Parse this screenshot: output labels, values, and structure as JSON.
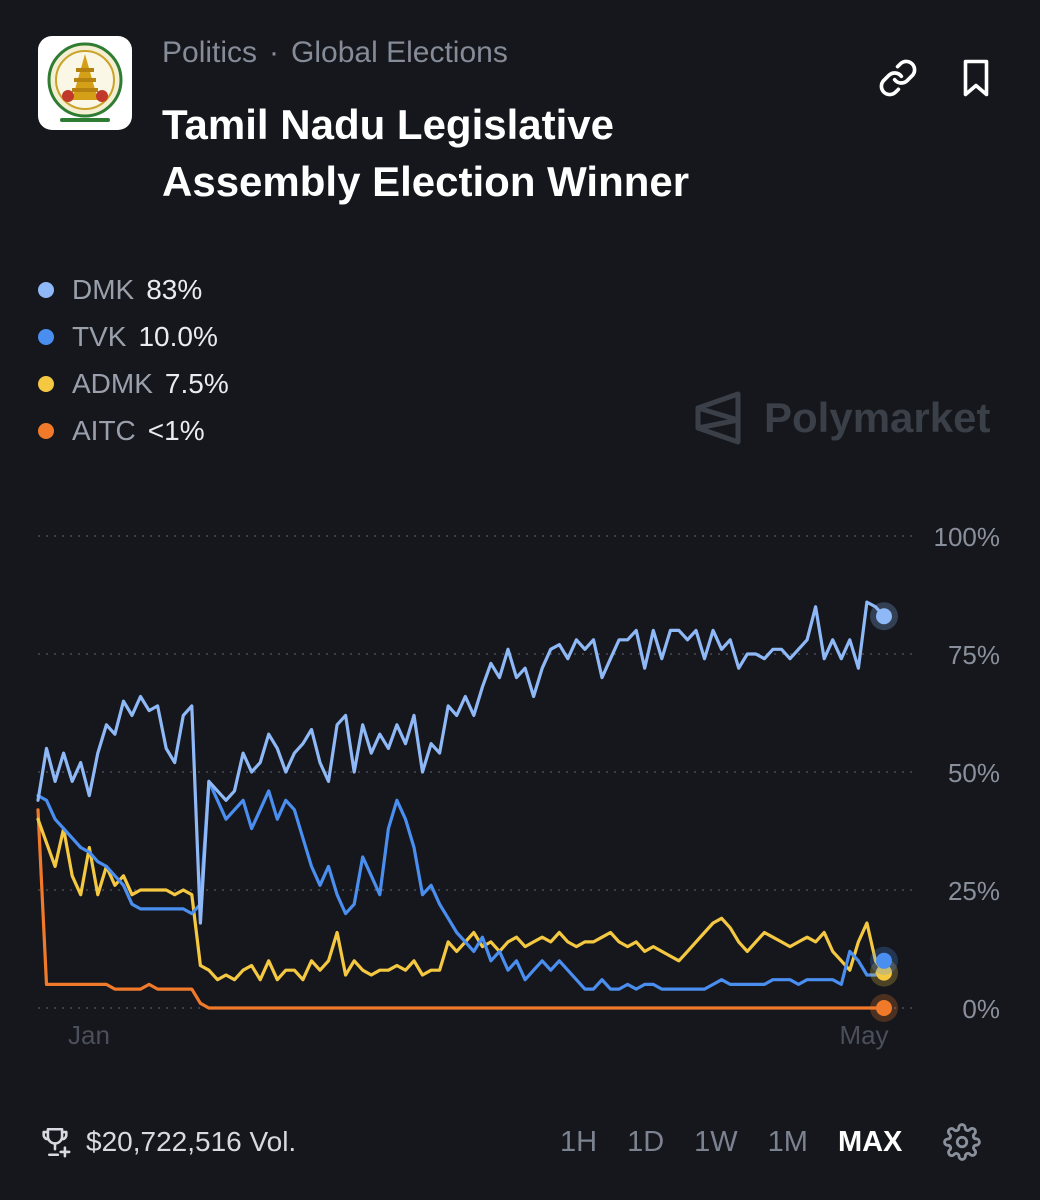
{
  "breadcrumb": {
    "category": "Politics",
    "subcategory": "Global Elections",
    "separator": "·"
  },
  "market": {
    "title": "Tamil Nadu Legislative Assembly Election Winner"
  },
  "icons": {
    "logo": "tamil-nadu-emblem",
    "link": "link-icon",
    "bookmark": "bookmark-icon",
    "trophy": "trophy-icon",
    "settings": "gear-icon",
    "watermark": "polymarket-logo"
  },
  "legend": [
    {
      "name": "DMK",
      "value": "83%",
      "color": "#8fb8f7"
    },
    {
      "name": "TVK",
      "value": "10.0%",
      "color": "#4a8ef0"
    },
    {
      "name": "ADMK",
      "value": "7.5%",
      "color": "#f5c842"
    },
    {
      "name": "AITC",
      "value": "<1%",
      "color": "#f07a2a"
    }
  ],
  "watermark": {
    "text": "Polymarket"
  },
  "chart_data": {
    "type": "line",
    "x_labels": [
      "Jan",
      "May"
    ],
    "y_tick_labels": [
      "100%",
      "75%",
      "50%",
      "25%",
      "0%"
    ],
    "ylim": [
      0,
      100
    ],
    "grid": "horizontal dotted",
    "series": [
      {
        "name": "DMK",
        "color": "#8fb8f7",
        "values": [
          44,
          55,
          48,
          54,
          48,
          52,
          45,
          54,
          60,
          58,
          65,
          62,
          66,
          63,
          64,
          55,
          52,
          62,
          64,
          18,
          48,
          46,
          44,
          46,
          54,
          50,
          52,
          58,
          55,
          50,
          54,
          56,
          59,
          52,
          48,
          60,
          62,
          50,
          60,
          54,
          58,
          55,
          60,
          56,
          62,
          50,
          56,
          54,
          64,
          62,
          66,
          62,
          68,
          73,
          70,
          76,
          70,
          72,
          66,
          72,
          76,
          77,
          74,
          78,
          76,
          78,
          70,
          74,
          78,
          78,
          80,
          72,
          80,
          74,
          80,
          80,
          78,
          80,
          74,
          80,
          76,
          78,
          72,
          75,
          75,
          74,
          76,
          76,
          74,
          76,
          78,
          85,
          74,
          78,
          74,
          78,
          72,
          86,
          85,
          83
        ]
      },
      {
        "name": "TVK",
        "color": "#4a8ef0",
        "values": [
          45,
          44,
          40,
          38,
          36,
          34,
          33,
          31,
          30,
          28,
          26,
          22,
          21,
          21,
          21,
          21,
          21,
          21,
          20,
          22,
          48,
          44,
          40,
          42,
          44,
          38,
          42,
          46,
          40,
          44,
          42,
          36,
          30,
          26,
          30,
          24,
          20,
          22,
          32,
          28,
          24,
          38,
          44,
          40,
          34,
          24,
          26,
          22,
          19,
          16,
          14,
          12,
          15,
          10,
          12,
          8,
          10,
          6,
          8,
          10,
          8,
          10,
          8,
          6,
          4,
          4,
          6,
          4,
          4,
          5,
          4,
          5,
          5,
          4,
          4,
          4,
          4,
          4,
          4,
          5,
          6,
          5,
          5,
          5,
          5,
          5,
          6,
          6,
          6,
          5,
          6,
          6,
          6,
          6,
          5,
          12,
          10,
          7,
          7,
          10
        ]
      },
      {
        "name": "ADMK",
        "color": "#f5c842",
        "values": [
          40,
          35,
          30,
          38,
          28,
          24,
          34,
          24,
          30,
          26,
          28,
          24,
          25,
          25,
          25,
          25,
          24,
          25,
          24,
          9,
          8,
          6,
          7,
          6,
          8,
          9,
          6,
          10,
          6,
          8,
          8,
          6,
          10,
          8,
          10,
          16,
          7,
          10,
          8,
          7,
          8,
          8,
          9,
          8,
          10,
          7,
          8,
          8,
          14,
          12,
          14,
          16,
          13,
          14,
          12,
          14,
          15,
          13,
          14,
          15,
          14,
          16,
          14,
          13,
          14,
          14,
          15,
          16,
          14,
          13,
          14,
          12,
          13,
          12,
          11,
          10,
          12,
          14,
          16,
          18,
          19,
          17,
          14,
          12,
          14,
          16,
          15,
          14,
          13,
          14,
          15,
          14,
          16,
          12,
          10,
          8,
          14,
          18,
          10,
          7.5
        ]
      },
      {
        "name": "AITC",
        "color": "#f07a2a",
        "values": [
          42,
          5,
          5,
          5,
          5,
          5,
          5,
          5,
          5,
          4,
          4,
          4,
          4,
          5,
          4,
          4,
          4,
          4,
          4,
          1,
          0,
          0,
          0,
          0,
          0,
          0,
          0,
          0,
          0,
          0,
          0,
          0,
          0,
          0,
          0,
          0,
          0,
          0,
          0,
          0,
          0,
          0,
          0,
          0,
          0,
          0,
          0,
          0,
          0,
          0,
          0,
          0,
          0,
          0,
          0,
          0,
          0,
          0,
          0,
          0,
          0,
          0,
          0,
          0,
          0,
          0,
          0,
          0,
          0,
          0,
          0,
          0,
          0,
          0,
          0,
          0,
          0,
          0,
          0,
          0,
          0,
          0,
          0,
          0,
          0,
          0,
          0,
          0,
          0,
          0,
          0,
          0,
          0,
          0,
          0,
          0,
          0,
          0,
          0,
          0
        ]
      }
    ]
  },
  "footer": {
    "volume": "$20,722,516 Vol."
  },
  "time_ranges": [
    {
      "label": "1H",
      "active": false
    },
    {
      "label": "1D",
      "active": false
    },
    {
      "label": "1W",
      "active": false
    },
    {
      "label": "1M",
      "active": false
    },
    {
      "label": "MAX",
      "active": true
    }
  ]
}
